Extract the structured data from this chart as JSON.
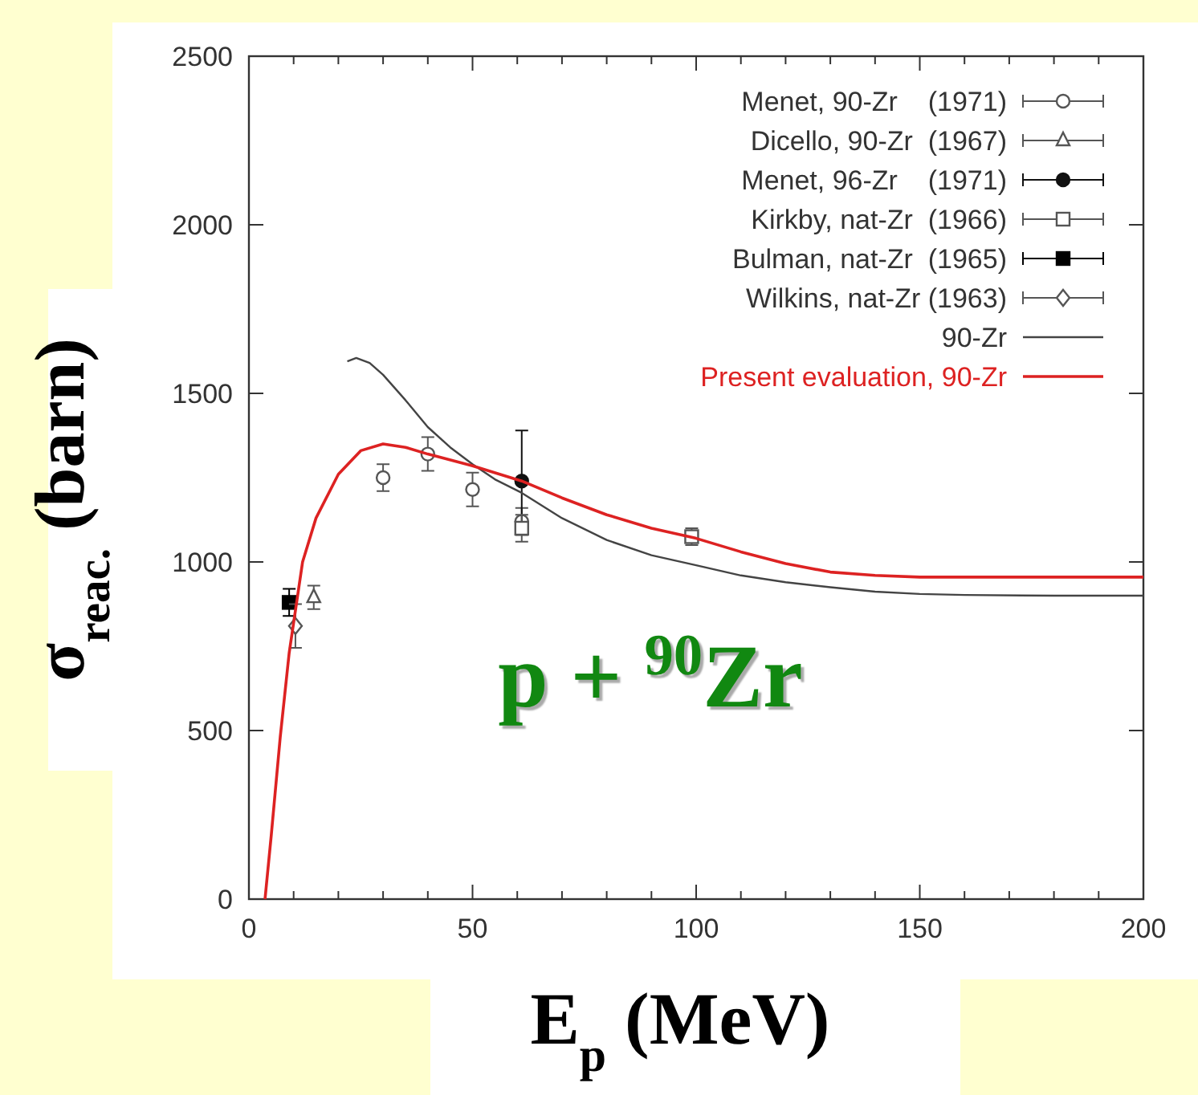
{
  "chart_data": {
    "type": "scatter",
    "xlabel": "E$_{p}$ (MeV)",
    "ylabel": "σ$_{reac.}$ (barn)",
    "xlim": [
      0,
      200
    ],
    "ylim": [
      0,
      2500
    ],
    "xticks": [
      0,
      {
        "value": 10,
        "label": null
      },
      {
        "value": 20,
        "label": null
      },
      {
        "value": 30,
        "label": null
      },
      {
        "value": 40,
        "label": null
      },
      50,
      {
        "value": 60,
        "label": null
      },
      {
        "value": 70,
        "label": null
      },
      {
        "value": 80,
        "label": null
      },
      {
        "value": 90,
        "label": null
      },
      100,
      {
        "value": 110,
        "label": null
      },
      {
        "value": 120,
        "label": null
      },
      {
        "value": 130,
        "label": null
      },
      {
        "value": 140,
        "label": null
      },
      150,
      {
        "value": 160,
        "label": null
      },
      {
        "value": 170,
        "label": null
      },
      {
        "value": 180,
        "label": null
      },
      {
        "value": 190,
        "label": null
      },
      200
    ],
    "yticks": [
      0,
      500,
      1000,
      1500,
      2000,
      2500
    ],
    "grid": false,
    "legend": "top right",
    "annotations": [
      "p + $^{90}$Zr"
    ],
    "series": [
      {
        "name": "Menet, 90-Zr    (1971)",
        "color": "#555555",
        "marker": "circle",
        "x": [
          30,
          40,
          50,
          61
        ],
        "values": [
          1250,
          1320,
          1215,
          1120
        ],
        "errors": [
          40,
          50,
          50,
          40
        ]
      },
      {
        "name": "Dicello, 90-Zr  (1967)",
        "color": "#555555",
        "marker": "triangle",
        "x": [
          14.5
        ],
        "values": [
          895
        ],
        "errors": [
          35
        ]
      },
      {
        "name": "Menet, 96-Zr    (1971)",
        "color": "#111111",
        "marker": "circle",
        "x": [
          61
        ],
        "values": [
          1240
        ],
        "errors": [
          150
        ]
      },
      {
        "name": "Kirkby, nat-Zr  (1966)",
        "color": "#555555",
        "marker": "square",
        "x": [
          61,
          99
        ],
        "values": [
          1100,
          1075
        ],
        "errors": [
          40,
          25
        ]
      },
      {
        "name": "Bulman, nat-Zr  (1965)",
        "color": "#000000",
        "marker": "square",
        "x": [
          9
        ],
        "values": [
          880
        ],
        "errors": [
          40
        ]
      },
      {
        "name": "Wilkins, nat-Zr (1963)",
        "color": "#555555",
        "marker": "diamond",
        "x": [
          10.4
        ],
        "values": [
          810
        ],
        "errors": [
          65
        ]
      },
      {
        "name": "90-Zr",
        "type": "line",
        "color": "#444444",
        "marker": "none",
        "x": [
          22,
          24,
          27,
          30,
          35,
          40,
          45,
          50,
          55,
          61,
          70,
          80,
          90,
          100,
          110,
          120,
          130,
          140,
          150,
          160,
          180,
          200
        ],
        "values": [
          1595,
          1605,
          1590,
          1555,
          1480,
          1400,
          1340,
          1290,
          1245,
          1205,
          1130,
          1065,
          1020,
          990,
          960,
          940,
          925,
          912,
          905,
          902,
          900,
          900
        ]
      },
      {
        "name": "Present evaluation, 90-Zr",
        "type": "line",
        "color": "#dd2222",
        "marker": "none",
        "x": [
          3.6,
          5,
          7,
          9,
          12,
          15,
          20,
          25,
          30,
          35,
          40,
          50,
          61,
          70,
          80,
          90,
          100,
          110,
          120,
          130,
          140,
          150,
          175,
          200
        ],
        "values": [
          0,
          190,
          480,
          730,
          1000,
          1130,
          1260,
          1330,
          1350,
          1340,
          1320,
          1285,
          1240,
          1190,
          1140,
          1100,
          1070,
          1030,
          995,
          970,
          960,
          955,
          955,
          955
        ]
      }
    ]
  }
}
